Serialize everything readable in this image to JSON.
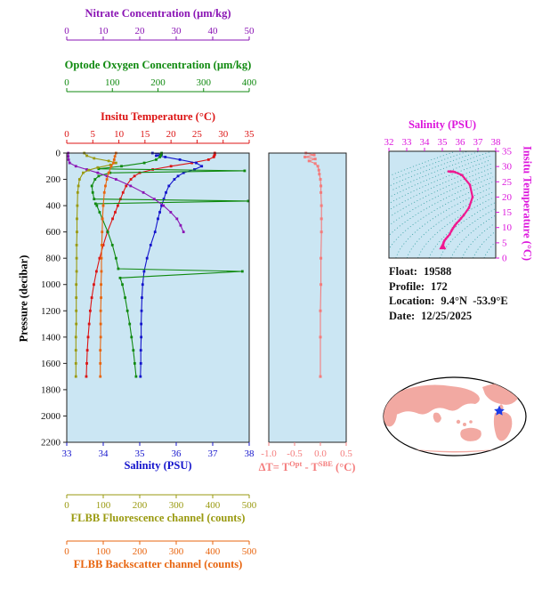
{
  "info_panel": {
    "lines": [
      [
        "Float:",
        "19588"
      ],
      [
        "Profile:",
        "172"
      ],
      [
        "Location:",
        "9.4°N  -53.9°E"
      ],
      [
        "Date:",
        "12/25/2025"
      ]
    ]
  },
  "map": {
    "land_color": "#f2a9a2",
    "ocean_color": "#ffffff",
    "outline_color": "#000000",
    "marker": {
      "shape": "star",
      "color": "#1c3ce8"
    }
  },
  "chart_data": [
    {
      "id": "profile-panel",
      "type": "line",
      "background": "#cbe6f3",
      "y_axis": {
        "label": "Pressure (decibar)",
        "range": [
          0,
          2200
        ],
        "ticks": [
          0,
          200,
          400,
          600,
          800,
          1000,
          1200,
          1400,
          1600,
          1800,
          2000,
          2200
        ]
      },
      "x_axes": [
        {
          "id": "salinity",
          "label": "Salinity (PSU)",
          "range": [
            33,
            38
          ],
          "ticks": [
            33,
            34,
            35,
            36,
            37,
            38
          ],
          "color": "#1414cc",
          "side": "bottom"
        },
        {
          "id": "temperature",
          "label": "Insitu Temperature (°C)",
          "range": [
            0,
            35
          ],
          "ticks": [
            0,
            5,
            10,
            15,
            20,
            25,
            30,
            35
          ],
          "color": "#dc1414",
          "side": "top"
        },
        {
          "id": "oxygen",
          "label": "Optode Oxygen Concentration (µm/kg)",
          "range": [
            0,
            400
          ],
          "ticks": [
            0,
            100,
            200,
            300,
            400
          ],
          "color": "#108a10",
          "side": "top"
        },
        {
          "id": "nitrate",
          "label": "Nitrate Concentration (µm/kg)",
          "range": [
            0,
            50
          ],
          "ticks": [
            0,
            10,
            20,
            30,
            40,
            50
          ],
          "color": "#8a14b4",
          "side": "top"
        },
        {
          "id": "fluorescence",
          "label": "FLBB Fluorescence channel (counts)",
          "range": [
            0,
            500
          ],
          "ticks": [
            0,
            100,
            200,
            300,
            400,
            500
          ],
          "color": "#9a9a10",
          "side": "bottom"
        },
        {
          "id": "backscatter",
          "label": "FLBB Backscatter channel (counts)",
          "range": [
            0,
            500
          ],
          "ticks": [
            0,
            100,
            200,
            300,
            400,
            500
          ],
          "color": "#e8650f",
          "side": "bottom"
        }
      ],
      "series": [
        {
          "name": "Insitu Temperature",
          "axis": "temperature",
          "color": "#dc1414",
          "pressure": [
            0,
            10,
            20,
            30,
            50,
            75,
            100,
            125,
            150,
            175,
            200,
            250,
            300,
            350,
            400,
            450,
            500,
            600,
            700,
            800,
            900,
            1000,
            1100,
            1200,
            1300,
            1400,
            1500,
            1600,
            1700
          ],
          "values": [
            28.4,
            28.4,
            28.3,
            28.2,
            27.2,
            24.0,
            20.0,
            16.5,
            14.0,
            13.0,
            12.3,
            11.4,
            10.8,
            10.3,
            9.8,
            9.3,
            8.8,
            7.8,
            7.0,
            6.3,
            5.7,
            5.2,
            4.8,
            4.5,
            4.3,
            4.1,
            3.95,
            3.85,
            3.75
          ]
        },
        {
          "name": "Salinity",
          "axis": "salinity",
          "color": "#1414cc",
          "pressure": [
            0,
            10,
            20,
            30,
            50,
            75,
            100,
            125,
            150,
            175,
            200,
            250,
            300,
            350,
            400,
            450,
            500,
            600,
            700,
            800,
            900,
            1000,
            1100,
            1200,
            1300,
            1400,
            1500,
            1600,
            1700
          ],
          "values": [
            35.35,
            35.6,
            35.45,
            35.7,
            36.1,
            36.55,
            36.7,
            36.5,
            36.2,
            36.05,
            35.95,
            35.8,
            35.72,
            35.66,
            35.6,
            35.55,
            35.5,
            35.42,
            35.3,
            35.2,
            35.12,
            35.08,
            35.06,
            35.05,
            35.04,
            35.04,
            35.03,
            35.03,
            35.02
          ]
        },
        {
          "name": "Optode Oxygen Concentration",
          "axis": "oxygen",
          "color": "#108a10",
          "pressure": [
            0,
            10,
            20,
            30,
            50,
            75,
            100,
            120,
            135,
            150,
            175,
            200,
            250,
            300,
            350,
            365,
            385,
            400,
            450,
            500,
            600,
            700,
            800,
            880,
            900,
            950,
            1000,
            1100,
            1200,
            1300,
            1400,
            1500,
            1600,
            1700
          ],
          "values": [
            208,
            207,
            206,
            204,
            196,
            170,
            120,
            70,
            390,
            95,
            70,
            62,
            55,
            57,
            60,
            398,
            63,
            66,
            72,
            78,
            90,
            100,
            108,
            113,
            385,
            117,
            122,
            128,
            133,
            138,
            142,
            146,
            149,
            152
          ]
        },
        {
          "name": "Nitrate Concentration",
          "axis": "nitrate",
          "color": "#8a14b4",
          "pressure": [
            0,
            25,
            50,
            75,
            100,
            125,
            150,
            175,
            200,
            250,
            300,
            350,
            400,
            450,
            500,
            550,
            600
          ],
          "values": [
            0.4,
            0.4,
            0.5,
            0.8,
            2.5,
            5.5,
            8.5,
            11,
            13.5,
            17.5,
            21,
            24,
            26.5,
            28.5,
            30.2,
            31.2,
            32
          ]
        },
        {
          "name": "FLBB Fluorescence channel",
          "axis": "fluorescence",
          "color": "#9a9a10",
          "pressure": [
            0,
            20,
            40,
            60,
            75,
            90,
            110,
            130,
            150,
            200,
            250,
            300,
            400,
            500,
            600,
            700,
            800,
            900,
            1000,
            1100,
            1200,
            1300,
            1400,
            1500,
            1600,
            1700
          ],
          "values": [
            48,
            55,
            75,
            115,
            135,
            120,
            85,
            60,
            45,
            35,
            32,
            30,
            29,
            28,
            28,
            27,
            27,
            27,
            26,
            26,
            26,
            26,
            25,
            25,
            25,
            25
          ]
        },
        {
          "name": "FLBB Backscatter channel",
          "axis": "backscatter",
          "color": "#e8650f",
          "pressure": [
            0,
            25,
            50,
            75,
            100,
            150,
            200,
            250,
            300,
            400,
            500,
            600,
            700,
            800,
            900,
            1000,
            1100,
            1200,
            1300,
            1400,
            1500,
            1600,
            1700
          ],
          "values": [
            135,
            132,
            130,
            128,
            122,
            115,
            110,
            106,
            103,
            100,
            98,
            97,
            96,
            95,
            95,
            94,
            94,
            93,
            93,
            93,
            92,
            92,
            92
          ]
        }
      ]
    },
    {
      "id": "delta-t-panel",
      "type": "line",
      "background": "#cbe6f3",
      "x_axis": {
        "label_parts": [
          "ΔT= T",
          "Opt",
          " - T",
          "SBE",
          " (°C)"
        ],
        "range": [
          -1.0,
          0.5
        ],
        "ticks": [
          "-1.0",
          "-0.5",
          "0.0",
          "0.5"
        ],
        "color": "#f47c7c"
      },
      "series": [
        {
          "name": "Temperature difference",
          "color": "#f47c7c",
          "pressure": [
            0,
            15,
            30,
            45,
            60,
            80,
            100,
            130,
            160,
            200,
            250,
            300,
            400,
            500,
            600,
            800,
            1000,
            1200,
            1400,
            1700
          ],
          "values": [
            -0.28,
            -0.12,
            -0.3,
            -0.1,
            -0.22,
            -0.1,
            -0.05,
            -0.03,
            -0.02,
            0,
            0.01,
            0.01,
            0.02,
            0.02,
            0.02,
            0.01,
            0.01,
            0,
            0,
            0
          ]
        }
      ]
    },
    {
      "id": "ts-diagram",
      "type": "line",
      "background": "#cbe6f3",
      "x_axis": {
        "label": "Salinity (PSU)",
        "range": [
          32,
          38
        ],
        "ticks": [
          32,
          33,
          34,
          35,
          36,
          37,
          38
        ],
        "color": "#dc14dc"
      },
      "y_axis": {
        "label": "Insitu Temperature (°C)",
        "range": [
          0,
          35
        ],
        "ticks": [
          0,
          5,
          10,
          15,
          20,
          25,
          30,
          35
        ],
        "color": "#dc14dc"
      },
      "contours": {
        "from": 20.5,
        "to": 30,
        "step": 0.5,
        "color": "#2f9e9e"
      },
      "series": [
        {
          "name": "T-S curve",
          "color": "#f01890",
          "salinity": [
            35.35,
            35.6,
            35.45,
            35.7,
            36.1,
            36.55,
            36.7,
            36.5,
            36.2,
            36.05,
            35.95,
            35.8,
            35.72,
            35.66,
            35.6,
            35.55,
            35.5,
            35.42,
            35.3,
            35.2,
            35.12,
            35.08,
            35.06,
            35.05,
            35.04,
            35.04,
            35.03,
            35.03,
            35.02
          ],
          "temperature": [
            28.4,
            28.4,
            28.3,
            28.2,
            27.2,
            24.0,
            20.0,
            16.5,
            14.0,
            13.0,
            12.3,
            11.4,
            10.8,
            10.3,
            9.8,
            9.3,
            8.8,
            7.8,
            7.0,
            6.3,
            5.7,
            5.2,
            4.8,
            4.5,
            4.3,
            4.1,
            3.95,
            3.85,
            3.75
          ]
        }
      ]
    }
  ]
}
